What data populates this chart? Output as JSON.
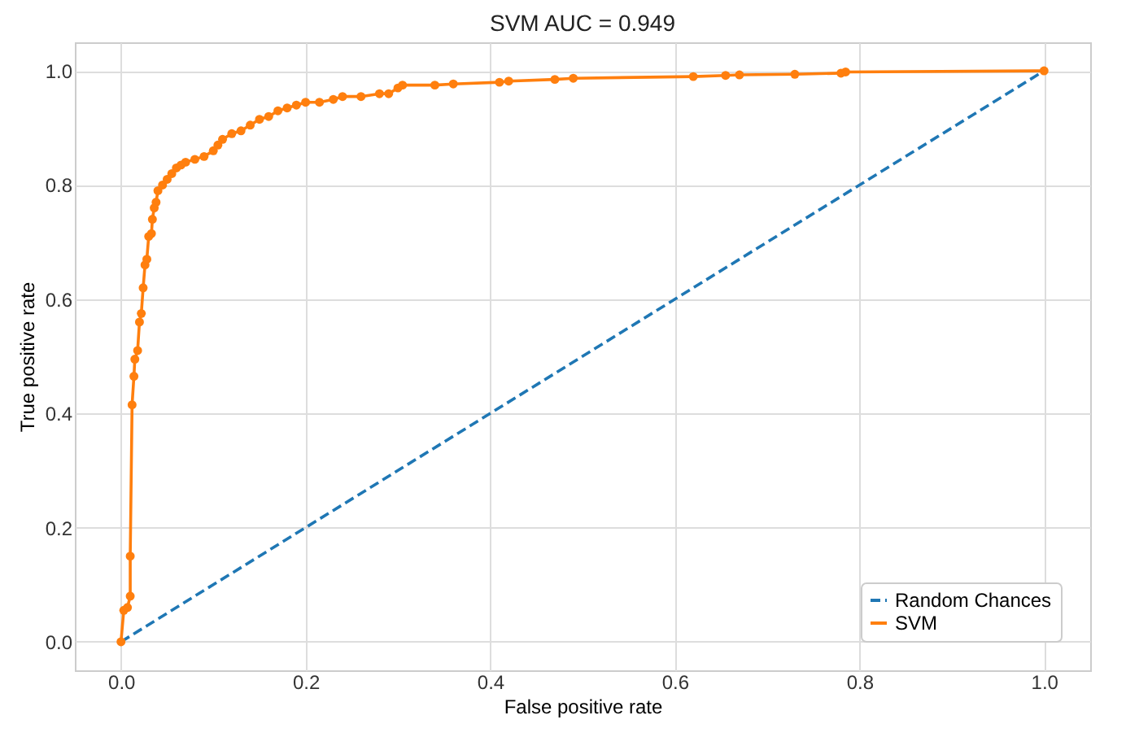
{
  "chart_data": {
    "type": "line",
    "title": "SVM AUC = 0.949",
    "xlabel": "False positive rate",
    "ylabel": "True positive rate",
    "xlim": [
      -0.05,
      1.05
    ],
    "ylim": [
      -0.05,
      1.05
    ],
    "xticks": [
      {
        "value": 0,
        "label": "0.0"
      },
      {
        "value": 0.2,
        "label": "0.2"
      },
      {
        "value": 0.4,
        "label": "0.4"
      },
      {
        "value": 0.6,
        "label": "0.6"
      },
      {
        "value": 0.8,
        "label": "0.8"
      },
      {
        "value": 1,
        "label": "1.0"
      }
    ],
    "yticks": [
      {
        "value": 0,
        "label": "0.0"
      },
      {
        "value": 0.2,
        "label": "0.2"
      },
      {
        "value": 0.4,
        "label": "0.4"
      },
      {
        "value": 0.6,
        "label": "0.6"
      },
      {
        "value": 0.8,
        "label": "0.8"
      },
      {
        "value": 1,
        "label": "1.0"
      }
    ],
    "grid": true,
    "legend": "bottom right",
    "series": [
      {
        "name": "Random Chances",
        "color": "#1f77b4",
        "line_style": "dashed",
        "marker": "none",
        "x": [
          0,
          1
        ],
        "values": [
          0,
          1
        ]
      },
      {
        "name": "SVM",
        "color": "#ff7f0e",
        "line_style": "solid",
        "marker": "circle",
        "x": [
          0,
          0.003,
          0.007,
          0.01,
          0.01,
          0.012,
          0.014,
          0.015,
          0.018,
          0.02,
          0.022,
          0.024,
          0.026,
          0.028,
          0.03,
          0.033,
          0.034,
          0.036,
          0.038,
          0.04,
          0.045,
          0.05,
          0.055,
          0.06,
          0.065,
          0.07,
          0.08,
          0.09,
          0.1,
          0.105,
          0.11,
          0.12,
          0.13,
          0.14,
          0.15,
          0.16,
          0.17,
          0.18,
          0.19,
          0.2,
          0.215,
          0.23,
          0.24,
          0.26,
          0.28,
          0.29,
          0.3,
          0.305,
          0.34,
          0.36,
          0.41,
          0.42,
          0.47,
          0.49,
          0.62,
          0.655,
          0.67,
          0.73,
          0.78,
          0.785,
          1
        ],
        "values": [
          0,
          0.055,
          0.06,
          0.08,
          0.15,
          0.415,
          0.465,
          0.495,
          0.51,
          0.56,
          0.575,
          0.62,
          0.66,
          0.67,
          0.71,
          0.715,
          0.74,
          0.76,
          0.77,
          0.79,
          0.8,
          0.81,
          0.82,
          0.83,
          0.835,
          0.84,
          0.845,
          0.85,
          0.86,
          0.87,
          0.88,
          0.89,
          0.895,
          0.905,
          0.915,
          0.92,
          0.93,
          0.935,
          0.94,
          0.945,
          0.945,
          0.95,
          0.955,
          0.955,
          0.96,
          0.96,
          0.97,
          0.975,
          0.975,
          0.977,
          0.98,
          0.982,
          0.985,
          0.987,
          0.99,
          0.992,
          0.993,
          0.994,
          0.996,
          0.998,
          1
        ]
      }
    ]
  }
}
